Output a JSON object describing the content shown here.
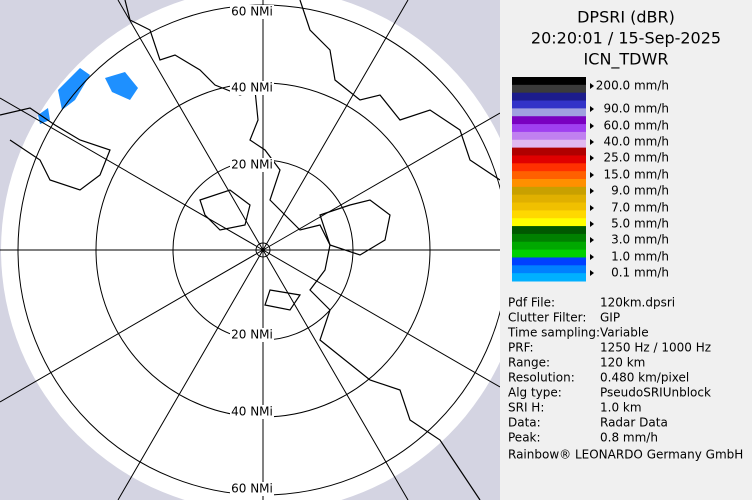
{
  "header": {
    "title": "DPSRI (dBR)",
    "datetime": "20:20:01 / 15-Sep-2025",
    "site": "ICN_TDWR"
  },
  "range_rings": {
    "labels": [
      "60 NMi",
      "40 NMi",
      "20 NMi",
      "20 NMi",
      "40 NMi",
      "60 NMi"
    ]
  },
  "legend": {
    "labels": [
      "200.0 mm/h",
      "90.0 mm/h",
      "60.0 mm/h",
      "40.0 mm/h",
      "25.0 mm/h",
      "15.0 mm/h",
      "9.0 mm/h",
      "7.0 mm/h",
      "5.0 mm/h",
      "3.0 mm/h",
      "1.0 mm/h",
      "0.1 mm/h"
    ]
  },
  "info": {
    "rows": [
      [
        "Pdf File:",
        "120km.dpsri"
      ],
      [
        "Clutter Filter:",
        "GIP"
      ],
      [
        "Time sampling:",
        "Variable"
      ],
      [
        "PRF:",
        "1250 Hz / 1000 Hz"
      ],
      [
        "Range:",
        "120 km"
      ],
      [
        "Resolution:",
        "0.480 km/pixel"
      ],
      [
        "Alg type:",
        "PseudoSRIUnblock"
      ],
      [
        "SRI H:",
        "1.0 km"
      ],
      [
        "Data:",
        "Radar Data"
      ],
      [
        "Peak:",
        "0.8 mm/h"
      ]
    ]
  },
  "footer": "Rainbow® LEONARDO Germany GmbH"
}
